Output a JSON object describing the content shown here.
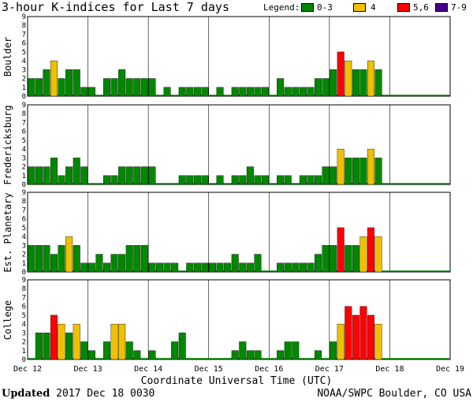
{
  "title": "3-hour K-indices for Last 7 days",
  "legend": {
    "label": "Legend:",
    "entries": [
      {
        "label": "0-3",
        "color": "#008800"
      },
      {
        "label": "4",
        "color": "#f0c000"
      },
      {
        "label": "5,6",
        "color": "#ff0000"
      },
      {
        "label": "7-9",
        "color": "#440088"
      }
    ]
  },
  "footer": {
    "updated_label": "Updated",
    "updated_value": " 2017 Dec 18 0030",
    "source": "NOAA/SWPC Boulder, CO USA"
  },
  "chart_data": {
    "type": "bar",
    "xlabel": "Coordinate Universal Time (UTC)",
    "x_ticks": [
      "Dec 12",
      "Dec 13",
      "Dec 14",
      "Dec 15",
      "Dec 16",
      "Dec 17",
      "Dec 18",
      "Dec 19"
    ],
    "y_ticks": [
      "0",
      "1",
      "2",
      "3",
      "4",
      "5",
      "6",
      "7",
      "8",
      "9"
    ],
    "ylim": [
      0,
      9
    ],
    "bars_per_day": 8,
    "color_scale": {
      "0-3": "#008800",
      "4": "#f0c000",
      "5-6": "#ff0000",
      "7-9": "#440088"
    },
    "panels": [
      {
        "name": "Boulder",
        "values": [
          2,
          2,
          3,
          4,
          2,
          3,
          3,
          1,
          1,
          0,
          2,
          2,
          3,
          2,
          2,
          2,
          2,
          0,
          1,
          0,
          1,
          1,
          1,
          1,
          0,
          1,
          0,
          1,
          1,
          1,
          1,
          1,
          0,
          2,
          1,
          1,
          1,
          1,
          2,
          2,
          3,
          5,
          4,
          3,
          3,
          4,
          3,
          null
        ]
      },
      {
        "name": "Fredericksburg",
        "values": [
          2,
          2,
          2,
          3,
          1,
          2,
          3,
          2,
          0,
          0,
          1,
          1,
          2,
          2,
          2,
          2,
          2,
          0,
          0,
          0,
          1,
          1,
          1,
          1,
          0,
          1,
          0,
          1,
          1,
          2,
          1,
          1,
          0,
          1,
          1,
          0,
          1,
          1,
          1,
          2,
          2,
          4,
          3,
          3,
          3,
          4,
          3,
          null
        ]
      },
      {
        "name": "Est. Planetary",
        "values": [
          3,
          3,
          3,
          2,
          3,
          4,
          3,
          1,
          1,
          2,
          1,
          2,
          2,
          3,
          3,
          3,
          1,
          1,
          1,
          1,
          0,
          1,
          1,
          1,
          1,
          1,
          1,
          2,
          1,
          1,
          2,
          0,
          0,
          1,
          1,
          1,
          1,
          1,
          2,
          3,
          3,
          5,
          3,
          3,
          4,
          5,
          4,
          null
        ]
      },
      {
        "name": "College",
        "values": [
          0,
          3,
          3,
          5,
          4,
          3,
          4,
          2,
          1,
          0,
          2,
          4,
          4,
          2,
          1,
          0,
          1,
          0,
          0,
          2,
          3,
          0,
          0,
          0,
          0,
          0,
          0,
          1,
          2,
          1,
          1,
          0,
          0,
          1,
          2,
          2,
          0,
          0,
          1,
          0,
          2,
          4,
          6,
          5,
          6,
          5,
          4,
          null
        ]
      }
    ]
  }
}
